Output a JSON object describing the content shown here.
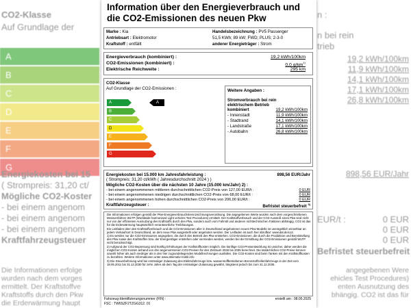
{
  "background": {
    "class_heading": "CO2-Klasse",
    "class_sub": "Auf Grundlage der",
    "classes": [
      "A",
      "B",
      "C",
      "D",
      "E",
      "F",
      "G"
    ],
    "right_head": [
      "n :",
      "n bei rein",
      "trieb"
    ],
    "right_values": [
      "19,2 kWh/100km",
      "11,9 kWh/100km",
      "14,1 kWh/100km",
      "17,1 kWh/100km",
      "26,8 kWh/100km"
    ],
    "cost_left": [
      "Energiekosten bei 15",
      "( Strompreis: 31,20 ct/",
      "Mögliche CO2-Koster",
      "- bei einem angenom",
      "- bei einem angenom",
      "- bei einem angenom",
      "Kraftfahrzeugsteuer"
    ],
    "cost_right": {
      "energy": "898,56 EUR/Jahr",
      "eurt": "EUR/t :",
      "zero": [
        "0 EUR",
        "0 EUR",
        "0 EUR"
      ],
      "tax": "Befristet steuerbefreit",
      "tax_note": "3)"
    },
    "text_left": [
      "Die Informationen erfolge",
      "wurden nach dem vorges",
      "ermittelt. Der Kraftstoffve",
      "Kraftstoffs durch den Pkw",
      "die Erderwärmung haupt"
    ],
    "text_right": [
      "angegebenen Were",
      "ehicles Test Procedures)",
      "enten Ausnutzung des",
      "bhängig. CO2 ist das für"
    ]
  },
  "label": {
    "title": "Information über den Energieverbrauch und die CO2-Emissionen des neuen Pkw",
    "vehicle": {
      "left": [
        [
          "Marke :",
          "Kia"
        ],
        [
          "Antriebsart :",
          "Elektromotor"
        ],
        [
          "Kraftstoff :",
          "entfällt"
        ]
      ],
      "right": [
        [
          "Handelsbezeichnung :",
          "PV5 Passenger"
        ],
        [
          "",
          "51,5 KWh; 89 kW; FWD; PLUS; 2-3-0"
        ],
        [
          "anderer Energieträger :",
          "Strom"
        ]
      ]
    },
    "consumption": [
      {
        "label": "Energieverbrauch (kombiniert) :",
        "value": "19,2 kWh/100km"
      },
      {
        "label": "CO2-Emissionen (kombiniert) :",
        "value": "0,0 g/km",
        "note": "1)"
      },
      {
        "label": "Elektrische Reichweite :",
        "value": "295 km"
      }
    ],
    "class_heading": "CO2-Klasse",
    "class_sub": "Auf Grundlage der CO2-Emissionen :",
    "classes": [
      "A",
      "B",
      "C",
      "D",
      "E",
      "F",
      "G"
    ],
    "current_class": "A",
    "further": {
      "heading": "Weitere Angaben :",
      "sub": "Stromverbrauch bei rein elektrischem Betrieb",
      "combined": "kombiniert",
      "combined_value": "19,2 kWh/100km",
      "rows": [
        [
          "- Innenstadt",
          "11,9 kWh/100km"
        ],
        [
          "- Stadtrand",
          "14,1 kWh/100km"
        ],
        [
          "- Landstraße",
          "17,1 kWh/100km"
        ],
        [
          "- Autobahn",
          "26,8 kWh/100km"
        ]
      ]
    },
    "costs": {
      "energy": "Energiekosten bei 15.000 km Jahresfahrleistung :",
      "energy_value": "898,56 EUR/Jahr",
      "price": "( Strompreis: 31,20 ct/kWh ( Jahresdurchschnitt 2024 ) )",
      "co2": "Mögliche CO2-Kosten über die nächsten 10 Jahre (15.000 km/Jahr) 2) :",
      "rows": [
        [
          "- bei einem angenommenen mittleren durchschnittlichen CO2-Preis von 127,00 EUR/t :",
          "0 EUR"
        ],
        [
          "- bei einem angenommenen niedrigen durchschnittlichen CO2-Preis von 68,00 EUR/t :",
          "0 EUR"
        ],
        [
          "- bei einem angenommenen hohen durchschnittlichen CO2-Preis von 206,00 EUR/t :",
          "0 EUR"
        ]
      ],
      "tax": "Kraftfahrzeugsteuer :",
      "tax_value": "Befristet steuerbefreit",
      "tax_note": "3)"
    },
    "fine_print": [
      "Die Informationen erfolgen gemäß der Pkw-Energieverbrauchskennzeichnungsverordnung. Die angegebenen Werte wurden nach dem vorgeschriebenen Messverfahren WLTP (Worldwide harmonised Light vehicles Test Procedures) ermittelt. Der Kraftstoffverbrauch und der CO2-Ausstoß eines Pkw sind nicht nur von der effizienten Ausnutzung des Kraftstoffs durch den Pkw, sondern auch vom Fahrstil und anderen nichttechnischen Faktoren abhängig. CO2 ist das für die Erderwärmung hauptsächlich verantwortliche Treibhausgas.",
      "Ein Leitfaden über den Kraftstoffverbrauch und die CO2-Emissionen aller in Deutschland angebotenen neuen Pkw-Modelle ist unentgeltlich einsehbar an jedem Verkaufsort in Deutschland, an dem neue Pkw ausgestellt oder angeboten werden. Der Leitfaden ist auch hier abrufbar: www.dat.de/co2.",
      "1) Es werden nur die CO2-Emissionen angegeben, die durch den Betrieb des Pkw entstehen. CO2-Emissionen, die durch die Produktion und Bereitstellung des Pkw sowie des Kraftstoffes bzw. der Energieträger entstehen oder vermieden werden, werden bei der Ermittlung der CO2-Emissionen gemäß WLTP nicht berücksichtigt.",
      "2) Aufgrund der CO2-Bepreisung sind künftig Erhöhungen der Kraftstoffkosten möglich. Die künftige CO2-Preisentwicklung ist unsicher, daher werden die möglichen CO2-Kosten anhand von drei angenommenen CO2-Preisen für den Zeitraum 2026 bis 2035 berechnet. Die tatsächlichen CO2-Preise können sowohl höher als auch niedriger als in den hier zugrundeliegenden Modellrechnungen ausfallen. Die CO2-Kosten sind beim Tanken mit den Kraftstoffkosten zu bezahlen. Weitere Informationen unter www.alternativ-mobil.info",
      "3) Die Steuerbefreiung wird bei erstmaliger Zulassung des Elektrofahrzeugs bzw. wasserstoffbetriebenen Brennstoffzellenfahrzeugs in der Zeit vom 18.05.2011 bis 31.12.2030 für zehn Jahre ab dem Tag der erstmaligen Zulassung gewährt, längstens jedoch bis zum 31.12.2035."
    ],
    "fin": "Fahrzeug-Identifizierungsnummer (FIN) :",
    "fsc": "FSC : TW6SZF2TZGG312. 01",
    "created": "erstellt am : 08.05.2025"
  }
}
